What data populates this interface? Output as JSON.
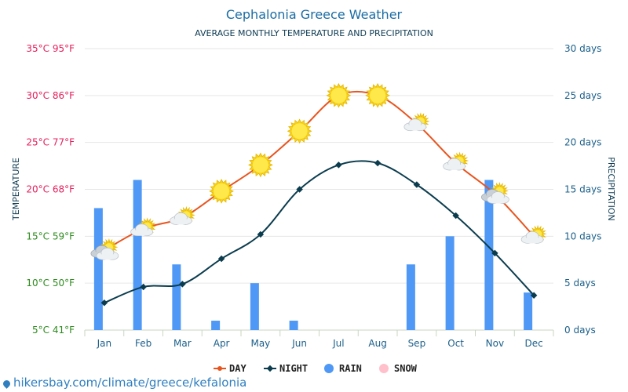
{
  "chart_data": {
    "type": "line",
    "title": "Cephalonia Greece Weather",
    "subtitle": "AVERAGE MONTHLY TEMPERATURE AND PRECIPITATION",
    "categories": [
      "Jan",
      "Feb",
      "Mar",
      "Apr",
      "May",
      "Jun",
      "Jul",
      "Aug",
      "Sep",
      "Oct",
      "Nov",
      "Dec"
    ],
    "y_left": {
      "label": "TEMPERATURE",
      "range": [
        5,
        35
      ],
      "ticks": [
        5,
        10,
        15,
        20,
        25,
        30,
        35
      ],
      "tick_labels": [
        "5°C 41°F",
        "10°C 50°F",
        "15°C 59°F",
        "20°C 68°F",
        "25°C 77°F",
        "30°C 86°F",
        "35°C 95°F"
      ]
    },
    "y_right": {
      "label": "PRECIPITATION",
      "range": [
        0,
        30
      ],
      "ticks": [
        0,
        5,
        10,
        15,
        20,
        25,
        30
      ],
      "tick_labels": [
        "0 days",
        "5 days",
        "10 days",
        "15 days",
        "20 days",
        "25 days",
        "30 days"
      ]
    },
    "series": [
      {
        "name": "DAY",
        "kind": "line",
        "axis": "left",
        "color": "#e8541e",
        "values": [
          13.5,
          15.8,
          17.0,
          19.8,
          22.6,
          26.2,
          30.0,
          30.0,
          27.0,
          22.8,
          19.5,
          15.0
        ]
      },
      {
        "name": "NIGHT",
        "kind": "line",
        "axis": "left",
        "color": "#0b3c4e",
        "values": [
          7.9,
          9.6,
          9.9,
          12.6,
          15.2,
          20.0,
          22.6,
          22.8,
          20.5,
          17.2,
          13.2,
          8.7
        ]
      },
      {
        "name": "RAIN",
        "kind": "bar",
        "axis": "right",
        "color": "#4f98f5",
        "values": [
          13,
          16,
          7,
          1,
          5,
          1,
          0,
          0,
          7,
          10,
          16,
          4
        ]
      },
      {
        "name": "SNOW",
        "kind": "bar",
        "axis": "right",
        "color": "#ffc0cb",
        "values": [
          0,
          0,
          0,
          0,
          0,
          0,
          0,
          0,
          0,
          0,
          0,
          0
        ]
      }
    ],
    "weather_icons": [
      "cloudy",
      "partly-cloudy",
      "partly-cloudy",
      "sunny",
      "sunny",
      "sunny",
      "sunny",
      "sunny",
      "partly-cloudy",
      "partly-cloudy",
      "cloudy",
      "partly-cloudy"
    ],
    "legend_position": "bottom-center",
    "grid": true
  },
  "colors": {
    "title": "#1b6ca3",
    "subtitle": "#0d3a52",
    "axis_text": "#1b5f8a",
    "grid": "#e6e6e6",
    "temp_hot": "#e4205c",
    "temp_warm": "#2e8b1e"
  },
  "watermark": "hikersbay.com/climate/greece/kefalonia"
}
